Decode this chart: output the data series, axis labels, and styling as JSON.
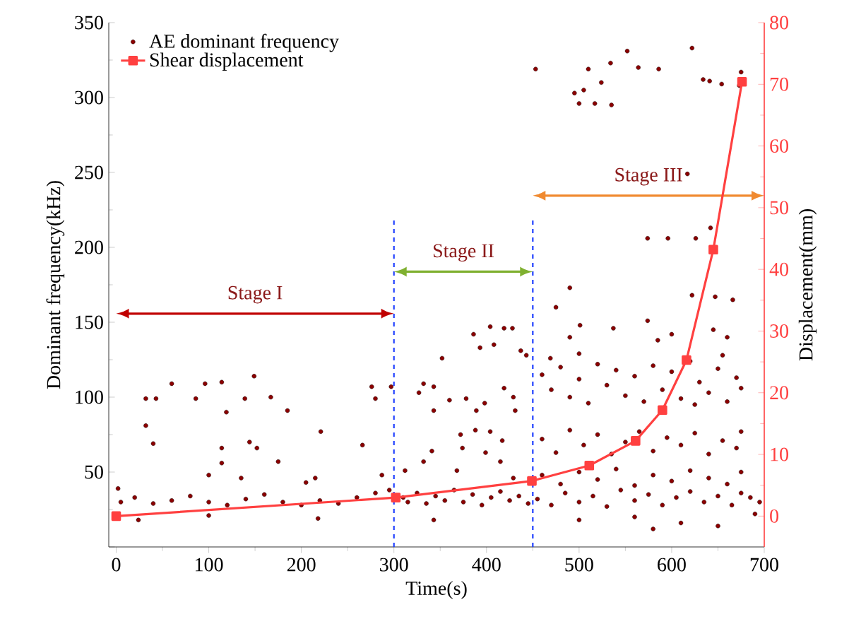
{
  "chart_data": {
    "type": "scatter",
    "xlabel": "Time(s)",
    "ylabel": "Dominant frequency(kHz)",
    "y2label": "Displacement(mm)",
    "xlim": [
      -8,
      700
    ],
    "xticks": [
      0,
      100,
      200,
      300,
      400,
      500,
      600,
      700
    ],
    "ylim": [
      0,
      350
    ],
    "yticks": [
      {
        "value": 0,
        "label": null
      },
      50,
      100,
      150,
      200,
      250,
      300,
      350
    ],
    "y2lim": [
      -5,
      80
    ],
    "y2ticks": [
      0,
      10,
      20,
      30,
      40,
      50,
      60,
      70,
      80
    ],
    "legend": "top left",
    "series": [
      {
        "name": "AE dominant frequency",
        "marker": "circle",
        "color": "#8b0000",
        "x": [
          5,
          20,
          40,
          60,
          80,
          100,
          120,
          140,
          160,
          180,
          200,
          220,
          240,
          260,
          280,
          295,
          32,
          43,
          60,
          96,
          114,
          149,
          86,
          139,
          167,
          185,
          119,
          32,
          40,
          144,
          114,
          152,
          221,
          266,
          276,
          297,
          280,
          114,
          175,
          100,
          135,
          205,
          215,
          287,
          2,
          100,
          218,
          24,
          386,
          404,
          419,
          428,
          393,
          408,
          437,
          443,
          352,
          332,
          343,
          327,
          360,
          378,
          398,
          419,
          429,
          431,
          389,
          343,
          388,
          372,
          404,
          417,
          374,
          399,
          415,
          341,
          332,
          312,
          368,
          429,
          343,
          310,
          315,
          325,
          335,
          345,
          355,
          365,
          375,
          385,
          395,
          405,
          415,
          425,
          435,
          445,
          453,
          495,
          500,
          505,
          510,
          517,
          524,
          534,
          535,
          552,
          564,
          586,
          622,
          634,
          641,
          654,
          673,
          675,
          617,
          574,
          596,
          626,
          642,
          622,
          647,
          666,
          574,
          501,
          537,
          585,
          600,
          645,
          660,
          469,
          500,
          490,
          490,
          475,
          460,
          470,
          480,
          490,
          500,
          510,
          520,
          530,
          540,
          550,
          560,
          570,
          580,
          590,
          600,
          610,
          620,
          630,
          640,
          650,
          660,
          670,
          675,
          655,
          625,
          460,
          475,
          490,
          505,
          520,
          535,
          550,
          565,
          580,
          595,
          610,
          625,
          640,
          655,
          670,
          675,
          460,
          480,
          500,
          520,
          540,
          560,
          580,
          600,
          620,
          640,
          660,
          675,
          455,
          470,
          485,
          500,
          515,
          530,
          545,
          560,
          575,
          590,
          605,
          620,
          635,
          650,
          665,
          675,
          685,
          695,
          500,
          560,
          610,
          650,
          690,
          580
        ],
        "values": [
          30,
          33,
          29,
          31,
          34,
          30,
          28,
          32,
          35,
          30,
          28,
          31,
          29,
          33,
          36,
          38,
          99,
          99,
          109,
          109,
          110,
          114,
          99,
          99,
          100,
          91,
          90,
          81,
          69,
          70,
          66,
          66,
          77,
          68,
          107,
          107,
          99,
          56,
          57,
          48,
          46,
          43,
          46,
          48,
          39,
          21,
          19,
          18,
          142,
          147,
          146,
          146,
          133,
          135,
          131,
          128,
          126,
          109,
          107,
          103,
          98,
          99,
          96,
          106,
          100,
          91,
          91,
          91,
          78,
          75,
          77,
          71,
          66,
          63,
          57,
          64,
          57,
          51,
          51,
          46,
          18,
          33,
          30,
          36,
          29,
          34,
          31,
          38,
          30,
          35,
          28,
          33,
          37,
          31,
          34,
          29,
          319,
          303,
          296,
          305,
          319,
          296,
          310,
          323,
          295,
          331,
          320,
          319,
          333,
          312,
          311,
          309,
          308,
          317,
          249,
          206,
          206,
          206,
          213,
          168,
          167,
          165,
          151,
          148,
          146,
          138,
          142,
          145,
          140,
          126,
          129,
          140,
          173,
          160,
          115,
          105,
          120,
          100,
          112,
          96,
          122,
          108,
          118,
          101,
          114,
          97,
          121,
          105,
          117,
          99,
          124,
          110,
          103,
          119,
          97,
          113,
          106,
          128,
          95,
          72,
          63,
          78,
          68,
          75,
          62,
          70,
          77,
          64,
          73,
          68,
          76,
          62,
          71,
          66,
          77,
          48,
          42,
          50,
          45,
          52,
          41,
          48,
          44,
          51,
          46,
          42,
          50,
          32,
          28,
          36,
          30,
          34,
          27,
          38,
          31,
          35,
          28,
          33,
          37,
          30,
          34,
          28,
          36,
          33,
          30,
          18,
          20,
          16,
          14,
          22,
          12
        ]
      },
      {
        "name": "Shear displacement",
        "type": "line",
        "axis": "y2",
        "marker": "square",
        "line_style": "solid",
        "color": "#ff4040",
        "x": [
          0,
          302,
          449,
          511,
          561,
          590,
          616,
          645,
          676
        ],
        "values": [
          0,
          3,
          5.7,
          8.2,
          12.2,
          17.2,
          25.3,
          43.2,
          70.4
        ]
      }
    ],
    "ref_lines": [
      {
        "axis": "x",
        "value": 300,
        "color": "#1f3fff",
        "line_style": "dashed"
      },
      {
        "axis": "x",
        "value": 450,
        "color": "#1f3fff",
        "line_style": "dashed"
      }
    ],
    "annotations": [
      "Stage I",
      "Stage II",
      "Stage III"
    ]
  }
}
